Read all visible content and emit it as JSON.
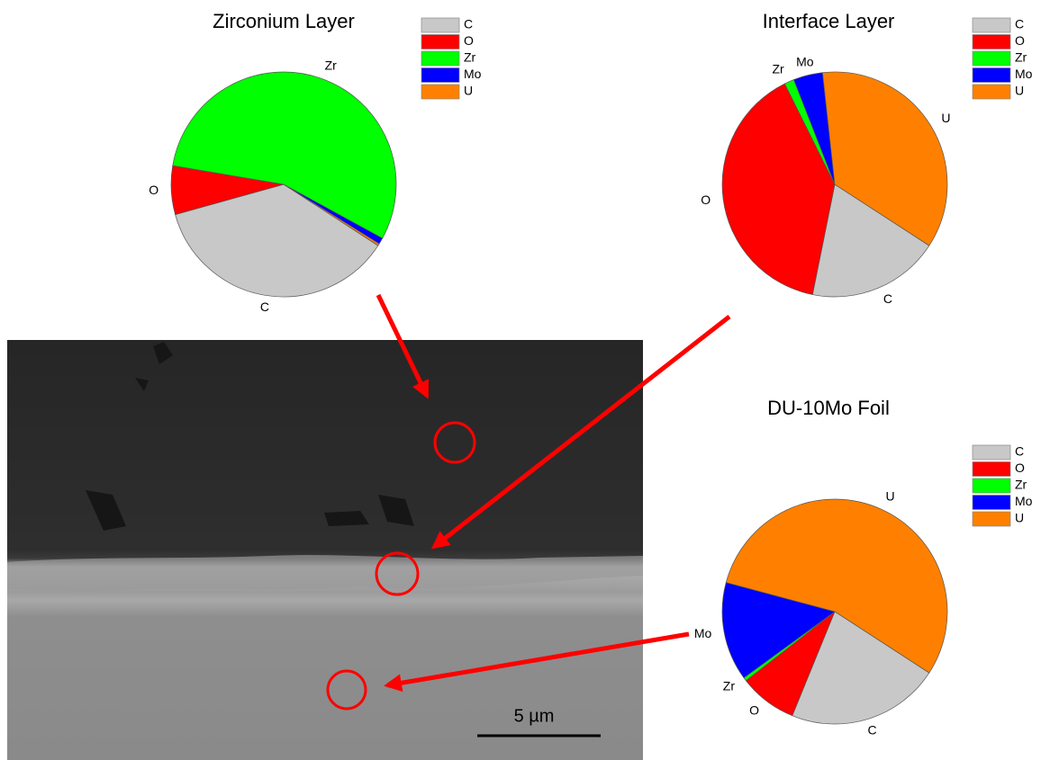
{
  "chart_data": [
    {
      "type": "pie",
      "title": "Zirconium Layer",
      "categories": [
        "C",
        "O",
        "Zr",
        "Mo",
        "U"
      ],
      "values": [
        36.5,
        7,
        55.3,
        0.9,
        0.3
      ],
      "colors": [
        "#c8c8c8",
        "#ff0000",
        "#00ff00",
        "#0000ff",
        "#ff8000"
      ]
    },
    {
      "type": "pie",
      "title": "Interface Layer",
      "categories": [
        "C",
        "O",
        "Zr",
        "Mo",
        "U"
      ],
      "values": [
        19,
        39.5,
        1.4,
        4.2,
        35.9
      ],
      "colors": [
        "#c8c8c8",
        "#ff0000",
        "#00ff00",
        "#0000ff",
        "#ff8000"
      ]
    },
    {
      "type": "pie",
      "title": "DU-10Mo Foil",
      "categories": [
        "C",
        "O",
        "Zr",
        "Mo",
        "U"
      ],
      "values": [
        22,
        8.3,
        0.5,
        14.2,
        55
      ],
      "colors": [
        "#c8c8c8",
        "#ff0000",
        "#00ff00",
        "#0000ff",
        "#ff8000"
      ]
    }
  ],
  "image": {
    "scale_bar_label": "5 µm"
  }
}
